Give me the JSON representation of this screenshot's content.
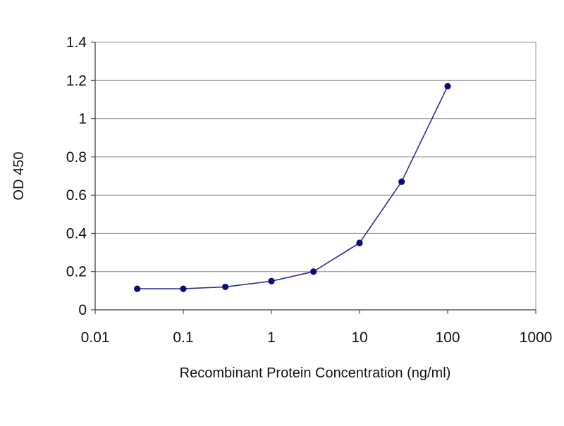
{
  "chart_data": {
    "type": "line",
    "title": "",
    "xlabel": "Recombinant Protein Concentration (ng/ml)",
    "ylabel": "OD 450",
    "x_scale": "log",
    "xlim": [
      0.01,
      1000
    ],
    "ylim": [
      0,
      1.4
    ],
    "x_ticks": [
      0.01,
      0.1,
      1,
      10,
      100,
      1000
    ],
    "x_tick_labels": [
      "0.01",
      "0.1",
      "1",
      "10",
      "100",
      "1000"
    ],
    "y_ticks": [
      0,
      0.2,
      0.4,
      0.6,
      0.8,
      1,
      1.2,
      1.4
    ],
    "y_tick_labels": [
      "0",
      "0.2",
      "0.4",
      "0.6",
      "0.8",
      "1",
      "1.2",
      "1.4"
    ],
    "grid": "horizontal",
    "legend": "none",
    "series": [
      {
        "x": [
          0.03,
          0.1,
          0.3,
          1,
          3,
          10,
          30,
          100
        ],
        "y": [
          0.11,
          0.11,
          0.12,
          0.15,
          0.2,
          0.35,
          0.67,
          1.17
        ],
        "color": "#2b2f9e",
        "marker_color": "#0a0a7a"
      }
    ],
    "colors": {
      "gridline": "#888888",
      "axis": "#333333",
      "plot_border": "#999999"
    }
  }
}
